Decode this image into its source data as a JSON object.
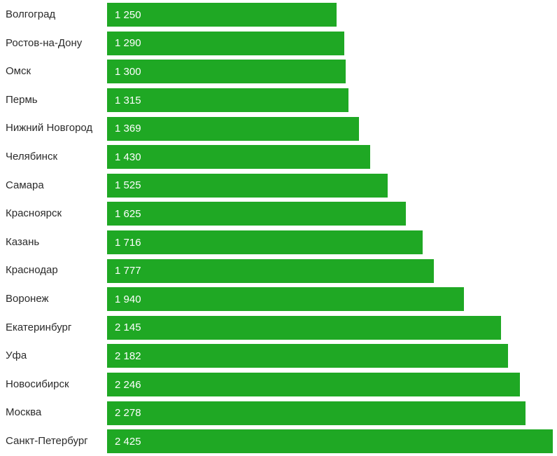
{
  "chart_data": {
    "type": "bar",
    "orientation": "horizontal",
    "title": "",
    "xlabel": "",
    "ylabel": "",
    "grid": false,
    "legend": false,
    "sort_order": "ascending",
    "max_value": 2425,
    "xlim": [
      0,
      2425
    ],
    "bar_color": "#1fa824",
    "value_text_color": "#ffffff",
    "category_text_color": "#2b2b2b",
    "categories": [
      "Волгоград",
      "Ростов-на-Дону",
      "Омск",
      "Пермь",
      "Нижний Новгород",
      "Челябинск",
      "Самара",
      "Красноярск",
      "Казань",
      "Краснодар",
      "Воронеж",
      "Екатеринбург",
      "Уфа",
      "Новосибирск",
      "Москва",
      "Санкт-Петербург"
    ],
    "values": [
      1250,
      1290,
      1300,
      1315,
      1369,
      1430,
      1525,
      1625,
      1716,
      1777,
      1940,
      2145,
      2182,
      2246,
      2278,
      2425
    ],
    "value_labels": [
      "1 250",
      "1 290",
      "1 300",
      "1 315",
      "1 369",
      "1 430",
      "1 525",
      "1 625",
      "1 716",
      "1 777",
      "1 940",
      "2 145",
      "2 182",
      "2 246",
      "2 278",
      "2 425"
    ]
  }
}
